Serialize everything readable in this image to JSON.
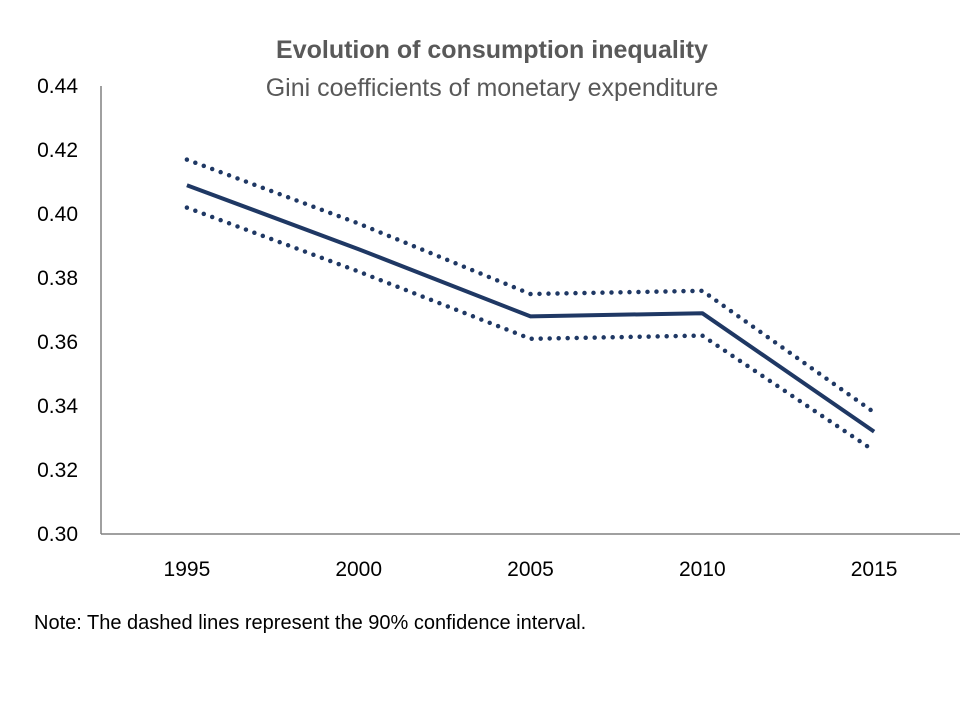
{
  "chart_data": {
    "type": "line",
    "title": "Evolution of consumption inequality",
    "subtitle": "Gini coefficients of monetary expenditure",
    "categories": [
      "1995",
      "2000",
      "2005",
      "2010",
      "2015"
    ],
    "series": [
      {
        "style": "solid",
        "color": "#1F3864",
        "values": [
          0.409,
          0.389,
          0.368,
          0.369,
          0.332
        ]
      },
      {
        "style": "dotted",
        "color": "#1F3864",
        "values": [
          0.417,
          0.397,
          0.375,
          0.376,
          0.338
        ]
      },
      {
        "style": "dotted",
        "color": "#1F3864",
        "values": [
          0.402,
          0.382,
          0.361,
          0.362,
          0.326
        ]
      }
    ],
    "ylim": [
      0.3,
      0.44
    ],
    "yticks": [
      "0.30",
      "0.32",
      "0.34",
      "0.36",
      "0.38",
      "0.40",
      "0.42",
      "0.44"
    ],
    "grid": false,
    "legend": "none"
  },
  "note": "Note: The dashed lines represent the 90% confidence interval."
}
